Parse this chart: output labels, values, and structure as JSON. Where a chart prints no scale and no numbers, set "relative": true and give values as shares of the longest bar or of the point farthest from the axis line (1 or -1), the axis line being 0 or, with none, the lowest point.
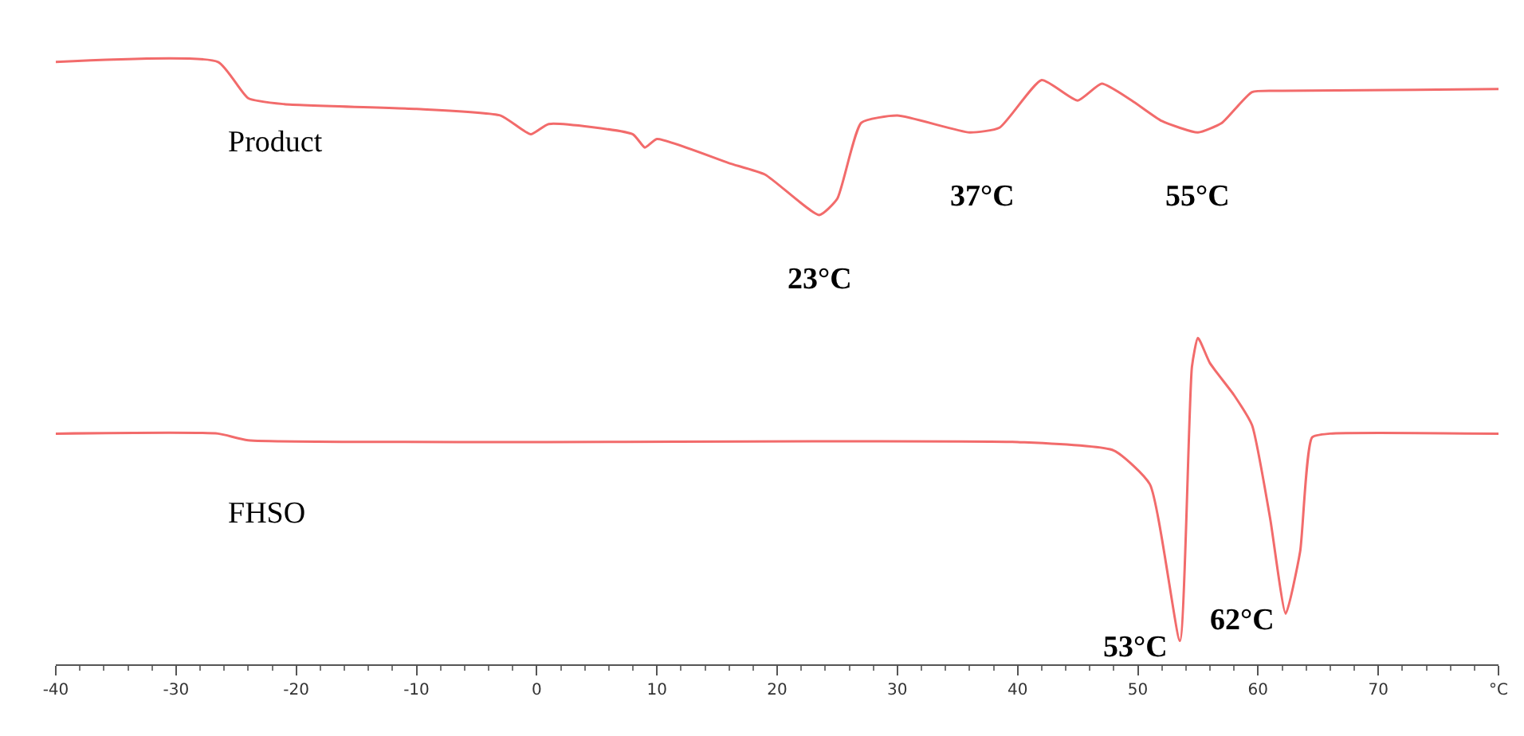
{
  "chart_data": {
    "type": "line",
    "relative": true,
    "marker": "none",
    "line_style": "solid",
    "legend": false,
    "xlim": [
      -40,
      80
    ],
    "xticks": [
      -40,
      -30,
      -20,
      -10,
      0,
      10,
      20,
      30,
      40,
      50,
      60,
      70,
      {
        "value": 80,
        "label": "°C"
      }
    ],
    "series": [
      {
        "name": "Product",
        "color": "#f26b6b",
        "x": [
          -40,
          -26.5,
          -24,
          -21,
          -10,
          -3,
          -0.5,
          1,
          8,
          9,
          10,
          16,
          19,
          23.5,
          25,
          27,
          30,
          36,
          38.5,
          42,
          45,
          47,
          49.5,
          52,
          55,
          57,
          59.5,
          62,
          80
        ],
        "values": [
          1.0,
          1.0,
          0.94,
          0.93,
          0.922,
          0.911,
          0.88,
          0.897,
          0.88,
          0.858,
          0.872,
          0.832,
          0.813,
          0.746,
          0.773,
          0.899,
          0.911,
          0.883,
          0.891,
          0.97,
          0.936,
          0.964,
          0.936,
          0.902,
          0.883,
          0.899,
          0.95,
          0.952,
          0.955
        ]
      },
      {
        "name": "FHSO",
        "color": "#f26b6b",
        "x": [
          -40,
          -26.5,
          -24,
          40,
          48,
          51,
          53.5,
          54.5,
          55,
          56,
          58,
          59.5,
          61,
          62.3,
          63.5,
          64.5,
          66,
          80
        ],
        "values": [
          0.383,
          0.383,
          0.372,
          0.369,
          0.355,
          0.299,
          0.039,
          0.494,
          0.542,
          0.5,
          0.447,
          0.397,
          0.243,
          0.084,
          0.187,
          0.377,
          0.383,
          0.383
        ]
      }
    ],
    "annotations": [
      {
        "text": "23°C",
        "x": 23.5,
        "y": 0.746
      },
      {
        "text": "37°C",
        "x": 37,
        "y": 0.883
      },
      {
        "text": "55°C",
        "x": 55,
        "y": 0.883
      },
      {
        "text": "53°C",
        "x": 53.5,
        "y": 0.039
      },
      {
        "text": "62°C",
        "x": 62.3,
        "y": 0.084
      }
    ]
  }
}
